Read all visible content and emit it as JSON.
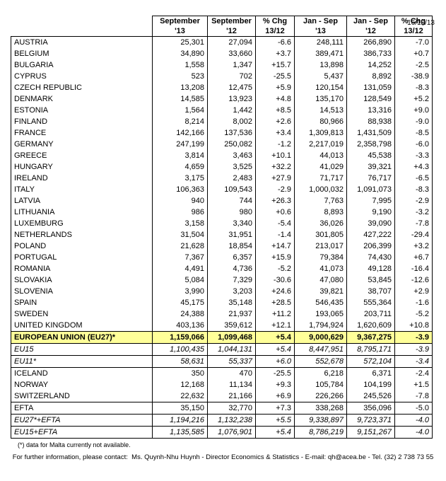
{
  "date": "16/10/13",
  "table": {
    "headers": [
      {
        "line1": "September",
        "line2": "'13"
      },
      {
        "line1": "September",
        "line2": "'12"
      },
      {
        "line1": "% Chg",
        "line2": "13/12"
      },
      {
        "line1": "Jan - Sep",
        "line2": "'13"
      },
      {
        "line1": "Jan - Sep",
        "line2": "'12"
      },
      {
        "line1": "% Chg",
        "line2": "13/12"
      }
    ],
    "rows": [
      {
        "name": "AUSTRIA",
        "values": [
          "25,301",
          "27,094",
          "-6.6",
          "248,111",
          "266,890",
          "-7.0"
        ],
        "style": "country"
      },
      {
        "name": "BELGIUM",
        "values": [
          "34,890",
          "33,660",
          "+3.7",
          "389,471",
          "386,733",
          "+0.7"
        ],
        "style": "country"
      },
      {
        "name": "BULGARIA",
        "values": [
          "1,558",
          "1,347",
          "+15.7",
          "13,898",
          "14,252",
          "-2.5"
        ],
        "style": "country"
      },
      {
        "name": "CYPRUS",
        "values": [
          "523",
          "702",
          "-25.5",
          "5,437",
          "8,892",
          "-38.9"
        ],
        "style": "country"
      },
      {
        "name": "CZECH REPUBLIC",
        "values": [
          "13,208",
          "12,475",
          "+5.9",
          "120,154",
          "131,059",
          "-8.3"
        ],
        "style": "country"
      },
      {
        "name": "DENMARK",
        "values": [
          "14,585",
          "13,923",
          "+4.8",
          "135,170",
          "128,549",
          "+5.2"
        ],
        "style": "country"
      },
      {
        "name": "ESTONIA",
        "values": [
          "1,564",
          "1,442",
          "+8.5",
          "14,513",
          "13,316",
          "+9.0"
        ],
        "style": "country"
      },
      {
        "name": "FINLAND",
        "values": [
          "8,214",
          "8,002",
          "+2.6",
          "80,966",
          "88,938",
          "-9.0"
        ],
        "style": "country"
      },
      {
        "name": "FRANCE",
        "values": [
          "142,166",
          "137,536",
          "+3.4",
          "1,309,813",
          "1,431,509",
          "-8.5"
        ],
        "style": "country"
      },
      {
        "name": "GERMANY",
        "values": [
          "247,199",
          "250,082",
          "-1.2",
          "2,217,019",
          "2,358,798",
          "-6.0"
        ],
        "style": "country"
      },
      {
        "name": "GREECE",
        "values": [
          "3,814",
          "3,463",
          "+10.1",
          "44,013",
          "45,538",
          "-3.3"
        ],
        "style": "country"
      },
      {
        "name": "HUNGARY",
        "values": [
          "4,659",
          "3,525",
          "+32.2",
          "41,029",
          "39,321",
          "+4.3"
        ],
        "style": "country"
      },
      {
        "name": "IRELAND",
        "values": [
          "3,175",
          "2,483",
          "+27.9",
          "71,717",
          "76,717",
          "-6.5"
        ],
        "style": "country"
      },
      {
        "name": "ITALY",
        "values": [
          "106,363",
          "109,543",
          "-2.9",
          "1,000,032",
          "1,091,073",
          "-8.3"
        ],
        "style": "country"
      },
      {
        "name": "LATVIA",
        "values": [
          "940",
          "744",
          "+26.3",
          "7,763",
          "7,995",
          "-2.9"
        ],
        "style": "country"
      },
      {
        "name": "LITHUANIA",
        "values": [
          "986",
          "980",
          "+0.6",
          "8,893",
          "9,190",
          "-3.2"
        ],
        "style": "country"
      },
      {
        "name": "LUXEMBURG",
        "values": [
          "3,158",
          "3,340",
          "-5.4",
          "36,026",
          "39,090",
          "-7.8"
        ],
        "style": "country"
      },
      {
        "name": "NETHERLANDS",
        "values": [
          "31,504",
          "31,951",
          "-1.4",
          "301,805",
          "427,222",
          "-29.4"
        ],
        "style": "country"
      },
      {
        "name": "POLAND",
        "values": [
          "21,628",
          "18,854",
          "+14.7",
          "213,017",
          "206,399",
          "+3.2"
        ],
        "style": "country"
      },
      {
        "name": "PORTUGAL",
        "values": [
          "7,367",
          "6,357",
          "+15.9",
          "79,384",
          "74,430",
          "+6.7"
        ],
        "style": "country"
      },
      {
        "name": "ROMANIA",
        "values": [
          "4,491",
          "4,736",
          "-5.2",
          "41,073",
          "49,128",
          "-16.4"
        ],
        "style": "country"
      },
      {
        "name": "SLOVAKIA",
        "values": [
          "5,084",
          "7,329",
          "-30.6",
          "47,080",
          "53,845",
          "-12.6"
        ],
        "style": "country"
      },
      {
        "name": "SLOVENIA",
        "values": [
          "3,990",
          "3,203",
          "+24.6",
          "39,821",
          "38,707",
          "+2.9"
        ],
        "style": "country"
      },
      {
        "name": "SPAIN",
        "values": [
          "45,175",
          "35,148",
          "+28.5",
          "546,435",
          "555,364",
          "-1.6"
        ],
        "style": "country"
      },
      {
        "name": "SWEDEN",
        "values": [
          "24,388",
          "21,937",
          "+11.2",
          "193,065",
          "203,711",
          "-5.2"
        ],
        "style": "country"
      },
      {
        "name": "UNITED KINGDOM",
        "values": [
          "403,136",
          "359,612",
          "+12.1",
          "1,794,924",
          "1,620,609",
          "+10.8"
        ],
        "style": "country"
      },
      {
        "name": "EUROPEAN UNION (EU27)*",
        "values": [
          "1,159,066",
          "1,099,468",
          "+5.4",
          "9,000,629",
          "9,367,275",
          "-3.9"
        ],
        "style": "eu-total"
      },
      {
        "name": "EU15",
        "values": [
          "1,100,435",
          "1,044,131",
          "+5.4",
          "8,447,951",
          "8,795,171",
          "-3.9"
        ],
        "style": "subtotal"
      },
      {
        "name": "EU11*",
        "values": [
          "58,631",
          "55,337",
          "+6.0",
          "552,678",
          "572,104",
          "-3.4"
        ],
        "style": "subtotal"
      },
      {
        "name": "ICELAND",
        "values": [
          "350",
          "470",
          "-25.5",
          "6,218",
          "6,371",
          "-2.4"
        ],
        "style": "country"
      },
      {
        "name": "NORWAY",
        "values": [
          "12,168",
          "11,134",
          "+9.3",
          "105,784",
          "104,199",
          "+1.5"
        ],
        "style": "country"
      },
      {
        "name": "SWITZERLAND",
        "values": [
          "22,632",
          "21,166",
          "+6.9",
          "226,266",
          "245,526",
          "-7.8"
        ],
        "style": "country"
      },
      {
        "name": "EFTA",
        "values": [
          "35,150",
          "32,770",
          "+7.3",
          "338,268",
          "356,096",
          "-5.0"
        ],
        "style": "efta-total"
      },
      {
        "name": "EU27*+EFTA",
        "values": [
          "1,194,216",
          "1,132,238",
          "+5.5",
          "9,338,897",
          "9,723,371",
          "-4.0"
        ],
        "style": "subtotal"
      },
      {
        "name": "EU15+EFTA",
        "values": [
          "1,135,585",
          "1,076,901",
          "+5.4",
          "8,786,219",
          "9,151,267",
          "-4.0"
        ],
        "style": "subtotal"
      }
    ]
  },
  "footnote": "(*) data for Malta currently not available.",
  "contact": {
    "prefix": "For further information, please contact:",
    "person": "Ms. Quynh-Nhu Huynh - Director Economics & Statistics - E-mail:",
    "email": "qh@acea.be",
    "suffix": "- Tel. (32) 2 738 73 55"
  }
}
